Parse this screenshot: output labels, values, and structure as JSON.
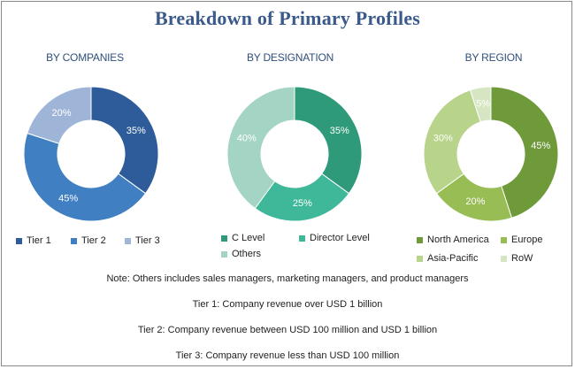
{
  "title": "Breakdown of Primary Profiles",
  "chart_data": [
    {
      "type": "pie",
      "subtitle": "BY COMPANIES",
      "categories": [
        "Tier 1",
        "Tier 2",
        "Tier 3"
      ],
      "values": [
        35,
        45,
        20
      ],
      "colors": [
        "#2e5c9a",
        "#3f7fc2",
        "#9fb5d8"
      ],
      "value_labels": [
        "35%",
        "45%",
        "20%"
      ]
    },
    {
      "type": "pie",
      "subtitle": "BY DESIGNATION",
      "categories": [
        "C Level",
        "Director Level",
        "Others"
      ],
      "values": [
        35,
        25,
        40
      ],
      "colors": [
        "#2e9a7a",
        "#3fb89a",
        "#a3d4c4"
      ],
      "value_labels": [
        "35%",
        "25%",
        "40%"
      ]
    },
    {
      "type": "pie",
      "subtitle": "BY REGION",
      "categories": [
        "North America",
        "Europe",
        "Asia-Pacific",
        "RoW"
      ],
      "values": [
        45,
        20,
        30,
        5
      ],
      "colors": [
        "#6f9a3a",
        "#98bd55",
        "#b8d38a",
        "#d6e6c2"
      ],
      "value_labels": [
        "45%",
        "20%",
        "30%",
        "5%"
      ]
    }
  ],
  "notes": [
    "Note: Others includes sales managers, marketing managers, and product managers",
    "Tier 1: Company revenue over USD 1 billion",
    "Tier 2: Company revenue between USD 100 million and USD 1 billion",
    "Tier 3: Company revenue less than USD 100 million"
  ]
}
